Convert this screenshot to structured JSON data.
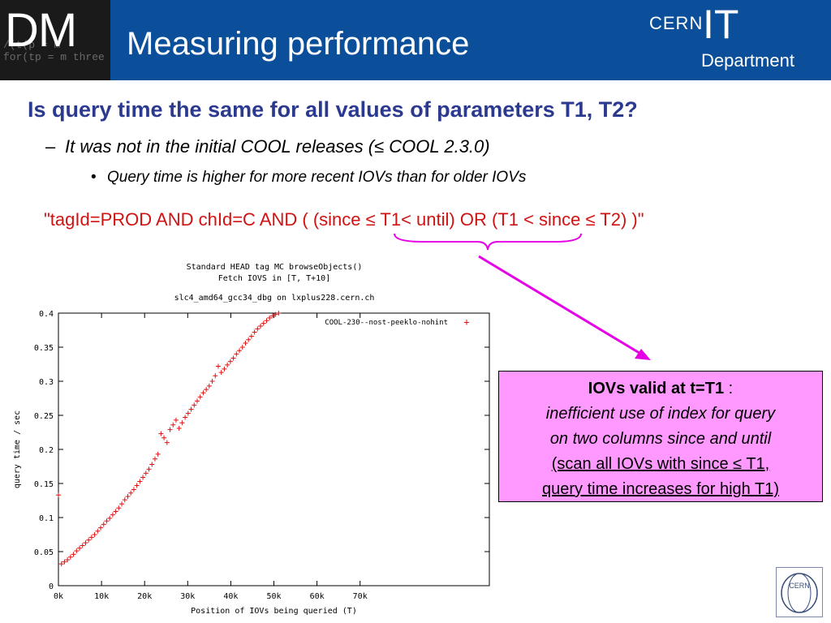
{
  "header": {
    "logo_text": "DM",
    "logo_code_lines": [
      "/(t(p = m",
      "for(tp = m three"
    ],
    "title": "Measuring performance",
    "org_top": "CERN",
    "org_mid": "IT",
    "org_bottom": "Department"
  },
  "bullets": {
    "level1": "Is query time the same for all values of parameters T1, T2?",
    "level2_marker": "–",
    "level2": "It was not in the initial COOL releases (≤ COOL 2.3.0)",
    "level3_marker": "•",
    "level3": "Query time is higher for more recent IOVs than for older IOVs"
  },
  "query": "\"tagId=PROD AND chId=C AND ( (since ≤ T1< until) OR (T1 < since ≤ T2) )\"",
  "callout": {
    "heading": "IOVs valid at t=T1",
    "heading_suffix": " :",
    "line1": "inefficient use of index for query",
    "line2": "on two columns since and until",
    "line3": "(scan all IOVs with since ≤ T1,",
    "line4": "query time increases for high T1)"
  },
  "footer": {
    "badge_text": "CERN"
  },
  "colors": {
    "header_bg": "#0b4f9a",
    "accent_magenta": "#e600e6",
    "callout_bg": "#ff99ff",
    "data_red": "#e01010",
    "heading_blue": "#2b3a8f",
    "query_red": "#d11212"
  },
  "chart_data": {
    "type": "scatter",
    "title_lines": [
      "Standard HEAD tag MC browseObjects()",
      "Fetch IOVS in [T, T+10]",
      "slc4_amd64_gcc34_dbg on lxplus228.cern.ch"
    ],
    "xlabel": "Position of IOVs being queried (T)",
    "ylabel": "query time / sec",
    "xlim": [
      0,
      100000
    ],
    "ylim": [
      0,
      0.4
    ],
    "x_ticks": [
      0,
      10000,
      20000,
      30000,
      40000,
      50000,
      60000,
      70000
    ],
    "x_tick_labels": [
      "0k",
      "10k",
      "20k",
      "30k",
      "40k",
      "50k",
      "60k",
      "70k"
    ],
    "y_ticks": [
      0,
      0.05,
      0.1,
      0.15,
      0.2,
      0.25,
      0.3,
      0.35,
      0.4
    ],
    "y_tick_labels": [
      "0",
      "0.05",
      "0.1",
      "0.15",
      "0.2",
      "0.25",
      "0.3",
      "0.35",
      "0.4"
    ],
    "legend_position": "top-right",
    "series": [
      {
        "name": "COOL-230--nost-peeklo-nohint",
        "marker": "+",
        "color": "#e01010",
        "x": [
          0,
          700,
          1400,
          2100,
          2800,
          3500,
          4200,
          4900,
          5600,
          6300,
          7000,
          7700,
          8400,
          9100,
          9800,
          10500,
          11200,
          11900,
          12600,
          13300,
          14000,
          14700,
          15400,
          16100,
          16800,
          17500,
          18200,
          18900,
          19600,
          20300,
          21000,
          21700,
          22400,
          23100,
          23800,
          24500,
          25200,
          25900,
          26600,
          27300,
          28000,
          28700,
          29400,
          30100,
          30800,
          31500,
          32200,
          32900,
          33600,
          34300,
          35000,
          35700,
          36400,
          37100,
          37800,
          38500,
          39200,
          39900,
          40600,
          41300,
          42000,
          42700,
          43400,
          44100,
          44800,
          45500,
          46200,
          46900,
          47600,
          48300,
          49000,
          49700,
          50400,
          51100
        ],
        "y": [
          0.133,
          0.032,
          0.035,
          0.038,
          0.042,
          0.046,
          0.051,
          0.055,
          0.059,
          0.063,
          0.067,
          0.071,
          0.075,
          0.08,
          0.085,
          0.09,
          0.095,
          0.099,
          0.104,
          0.109,
          0.114,
          0.12,
          0.126,
          0.131,
          0.136,
          0.141,
          0.147,
          0.153,
          0.159,
          0.165,
          0.171,
          0.178,
          0.186,
          0.193,
          0.223,
          0.217,
          0.21,
          0.229,
          0.236,
          0.243,
          0.231,
          0.239,
          0.247,
          0.253,
          0.259,
          0.265,
          0.271,
          0.277,
          0.283,
          0.288,
          0.293,
          0.3,
          0.308,
          0.322,
          0.313,
          0.318,
          0.324,
          0.329,
          0.334,
          0.34,
          0.345,
          0.35,
          0.356,
          0.361,
          0.366,
          0.372,
          0.377,
          0.381,
          0.385,
          0.389,
          0.393,
          0.396,
          0.398,
          0.4
        ]
      }
    ]
  }
}
